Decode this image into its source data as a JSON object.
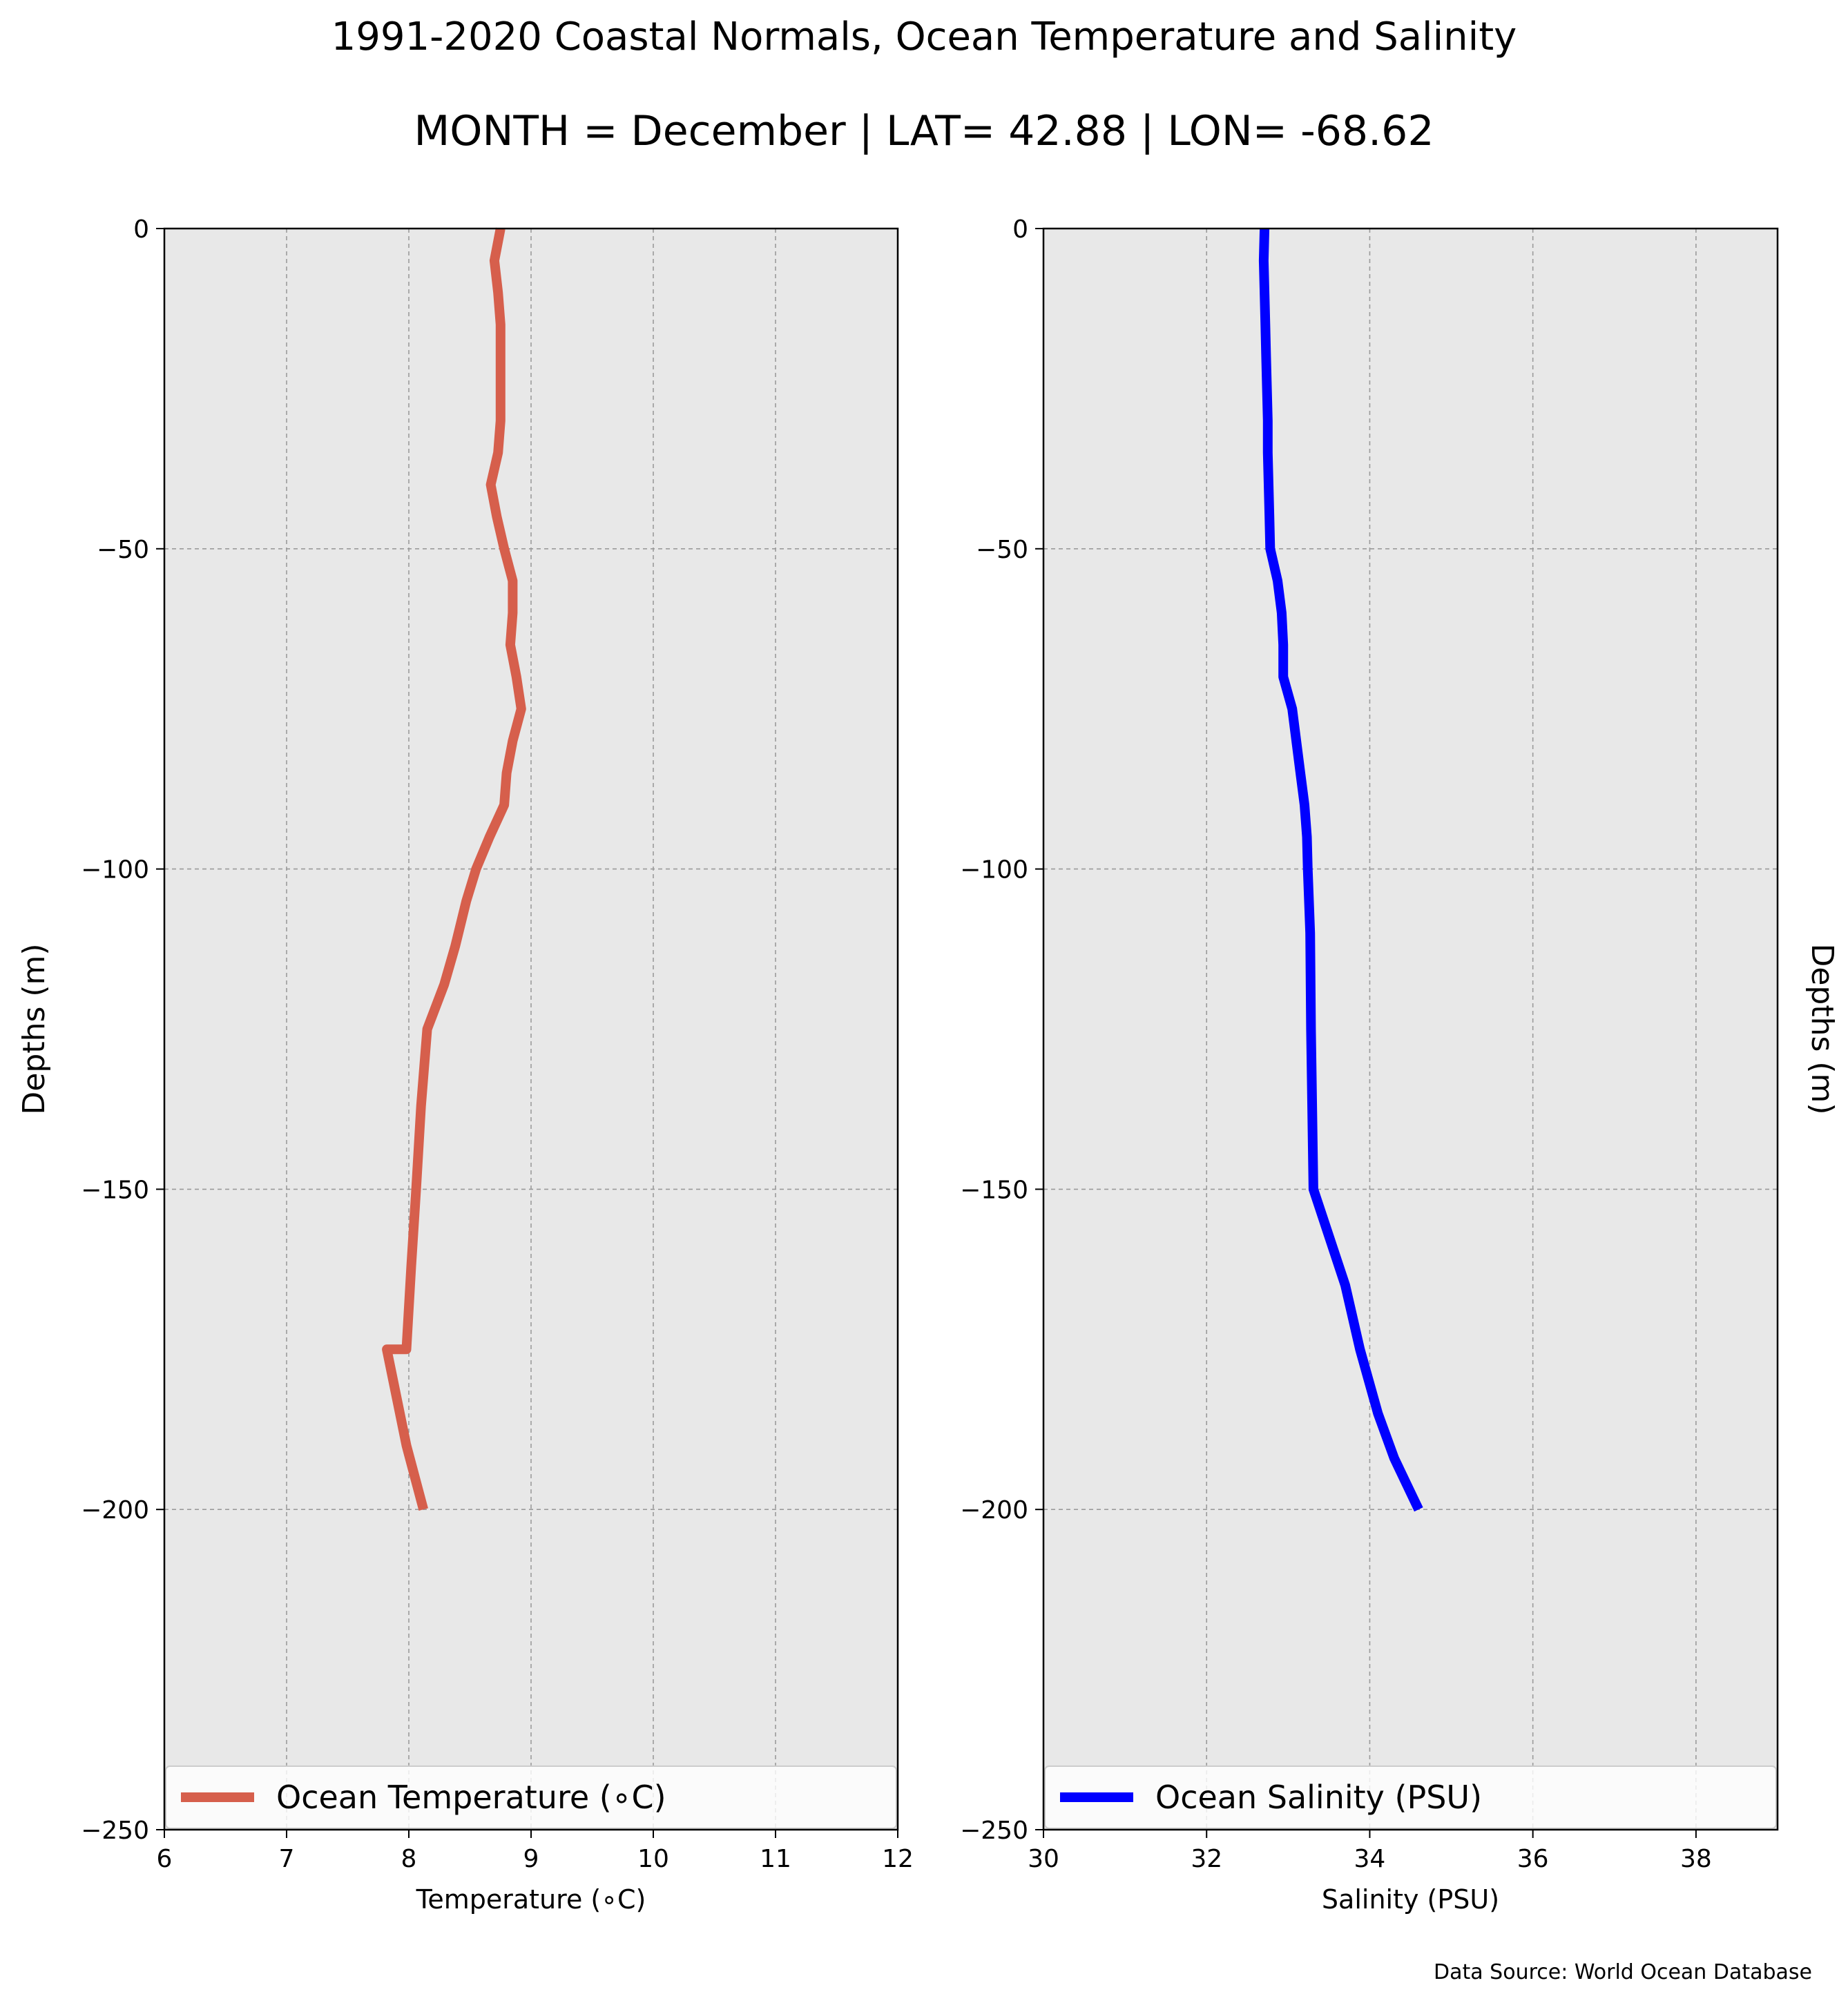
{
  "figure": {
    "title_line1": "1991-2020 Coastal Normals, Ocean Temperature and Salinity",
    "title_line2": "MONTH = December | LAT= 42.88 | LON= -68.62",
    "source": "Data Source: World Ocean Database",
    "background_color": "#ffffff",
    "axes_facecolor": "#e8e8e8",
    "grid": true
  },
  "chart_data": [
    {
      "type": "line",
      "name": "temperature-panel",
      "xlabel": "Temperature (∘C)",
      "ylabel": "Depths (m)",
      "xlim": [
        6,
        12
      ],
      "ylim": [
        -250,
        0
      ],
      "xticks": [
        6,
        7,
        8,
        9,
        10,
        11,
        12
      ],
      "yticks": [
        0,
        -50,
        -100,
        -150,
        -200,
        -250
      ],
      "ytick_labels": [
        "0",
        "−50",
        "−100",
        "−150",
        "−200",
        "−250"
      ],
      "legend": "lower-center",
      "series": [
        {
          "name": "Ocean Temperature (∘C)",
          "color": "#d65f4c",
          "x": [
            8.75,
            8.7,
            8.73,
            8.75,
            8.75,
            8.75,
            8.75,
            8.73,
            8.67,
            8.72,
            8.78,
            8.85,
            8.85,
            8.83,
            8.88,
            8.92,
            8.85,
            8.8,
            8.78,
            8.66,
            8.55,
            8.47,
            8.38,
            8.29,
            8.15,
            8.1,
            8.06,
            8.02,
            7.98,
            7.82,
            7.98,
            8.12
          ],
          "y": [
            0,
            -5,
            -10,
            -15,
            -20,
            -25,
            -30,
            -35,
            -40,
            -45,
            -50,
            -55,
            -60,
            -65,
            -70,
            -75,
            -80,
            -85,
            -90,
            -95,
            -100,
            -105,
            -112,
            -118,
            -125,
            -137,
            -150,
            -162,
            -175,
            -175,
            -190,
            -200
          ]
        }
      ]
    },
    {
      "type": "line",
      "name": "salinity-panel",
      "xlabel": "Salinity (PSU)",
      "ylabel": "Depths (m)",
      "xlim": [
        30,
        39
      ],
      "ylim": [
        -250,
        0
      ],
      "xticks": [
        30,
        32,
        34,
        36,
        38
      ],
      "yticks": [
        0,
        -50,
        -100,
        -150,
        -200,
        -250
      ],
      "ytick_labels": [
        "0",
        "−50",
        "−100",
        "−150",
        "−200",
        "−250"
      ],
      "legend": "lower-center",
      "series": [
        {
          "name": "Ocean Salinity (PSU)",
          "color": "#0000ff",
          "x": [
            32.71,
            32.7,
            32.71,
            32.72,
            32.73,
            32.74,
            32.75,
            32.75,
            32.76,
            32.77,
            32.78,
            32.87,
            32.92,
            32.94,
            32.94,
            33.05,
            33.1,
            33.15,
            33.2,
            33.23,
            33.24,
            33.27,
            33.28,
            33.31,
            33.7,
            33.88,
            34.1,
            34.3,
            34.45,
            34.6
          ],
          "y": [
            0,
            -5,
            -10,
            -15,
            -20,
            -25,
            -30,
            -35,
            -40,
            -45,
            -50,
            -55,
            -60,
            -65,
            -70,
            -75,
            -80,
            -85,
            -90,
            -95,
            -100,
            -110,
            -125,
            -150,
            -165,
            -175,
            -185,
            -192,
            -196,
            -200
          ]
        }
      ]
    }
  ]
}
